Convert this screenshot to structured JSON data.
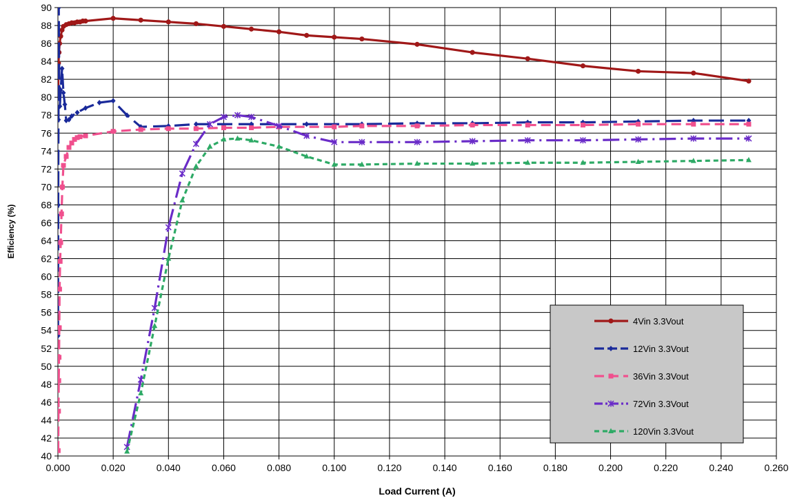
{
  "chart_data": {
    "type": "line",
    "title": "",
    "xlabel": "Load Current (A)",
    "ylabel": "Efficiency (%)",
    "xlim": [
      0,
      0.26
    ],
    "ylim": [
      40,
      90
    ],
    "x_ticks": [
      "0.000",
      "0.020",
      "0.040",
      "0.060",
      "0.080",
      "0.100",
      "0.120",
      "0.140",
      "0.160",
      "0.180",
      "0.200",
      "0.220",
      "0.240",
      "0.260"
    ],
    "y_ticks": [
      "40",
      "42",
      "44",
      "46",
      "48",
      "50",
      "52",
      "54",
      "56",
      "58",
      "60",
      "62",
      "64",
      "66",
      "68",
      "70",
      "72",
      "74",
      "76",
      "78",
      "80",
      "82",
      "84",
      "86",
      "88",
      "90"
    ],
    "grid": true,
    "legend_position": "lower-right",
    "series": [
      {
        "name": "4Vin 3.3Vout",
        "color": "#a01818",
        "dash": "solid",
        "marker": "circle",
        "points": [
          [
            0.0001,
            80.6
          ],
          [
            0.0002,
            83.8
          ],
          [
            0.0004,
            85.0
          ],
          [
            0.0006,
            86.0
          ],
          [
            0.001,
            86.8
          ],
          [
            0.0015,
            87.5
          ],
          [
            0.002,
            87.9
          ],
          [
            0.003,
            88.1
          ],
          [
            0.004,
            88.2
          ],
          [
            0.005,
            88.3
          ],
          [
            0.006,
            88.3
          ],
          [
            0.007,
            88.4
          ],
          [
            0.008,
            88.4
          ],
          [
            0.009,
            88.5
          ],
          [
            0.01,
            88.5
          ],
          [
            0.02,
            88.8
          ],
          [
            0.03,
            88.6
          ],
          [
            0.04,
            88.4
          ],
          [
            0.05,
            88.2
          ],
          [
            0.06,
            87.9
          ],
          [
            0.07,
            87.6
          ],
          [
            0.08,
            87.3
          ],
          [
            0.09,
            86.9
          ],
          [
            0.1,
            86.7
          ],
          [
            0.11,
            86.5
          ],
          [
            0.13,
            85.9
          ],
          [
            0.15,
            85.0
          ],
          [
            0.17,
            84.3
          ],
          [
            0.19,
            83.5
          ],
          [
            0.21,
            82.9
          ],
          [
            0.23,
            82.7
          ],
          [
            0.25,
            81.8
          ]
        ]
      },
      {
        "name": "12Vin 3.3Vout",
        "color": "#1a2a9a",
        "dash": "long",
        "marker": "diamond",
        "points": [
          [
            5e-05,
            53.4
          ],
          [
            0.0001,
            68.0
          ],
          [
            0.0002,
            77.5
          ],
          [
            0.0003,
            90.0
          ],
          [
            0.0005,
            81.0
          ],
          [
            0.0007,
            79.0
          ],
          [
            0.001,
            80.8
          ],
          [
            0.0015,
            83.2
          ],
          [
            0.002,
            80.5
          ],
          [
            0.0025,
            79.2
          ],
          [
            0.003,
            77.4
          ],
          [
            0.004,
            77.5
          ],
          [
            0.005,
            77.9
          ],
          [
            0.007,
            78.3
          ],
          [
            0.01,
            78.8
          ],
          [
            0.015,
            79.4
          ],
          [
            0.02,
            79.6
          ],
          [
            0.025,
            78.0
          ],
          [
            0.03,
            76.7
          ],
          [
            0.04,
            76.8
          ],
          [
            0.05,
            77.0
          ],
          [
            0.07,
            77.0
          ],
          [
            0.09,
            77.0
          ],
          [
            0.11,
            77.0
          ],
          [
            0.13,
            77.1
          ],
          [
            0.15,
            77.1
          ],
          [
            0.17,
            77.2
          ],
          [
            0.19,
            77.2
          ],
          [
            0.21,
            77.3
          ],
          [
            0.23,
            77.4
          ],
          [
            0.25,
            77.4
          ]
        ]
      },
      {
        "name": "36Vin 3.3Vout",
        "color": "#f0508e",
        "dash": "medium",
        "marker": "square",
        "points": [
          [
            0.0001,
            40.6
          ],
          [
            0.0002,
            45.0
          ],
          [
            0.0003,
            48.4
          ],
          [
            0.0004,
            51.0
          ],
          [
            0.0005,
            54.3
          ],
          [
            0.0006,
            58.6
          ],
          [
            0.0008,
            61.7
          ],
          [
            0.001,
            63.8
          ],
          [
            0.0013,
            67.0
          ],
          [
            0.0016,
            70.0
          ],
          [
            0.002,
            72.4
          ],
          [
            0.003,
            73.4
          ],
          [
            0.004,
            74.4
          ],
          [
            0.005,
            74.9
          ],
          [
            0.006,
            75.3
          ],
          [
            0.007,
            75.5
          ],
          [
            0.008,
            75.6
          ],
          [
            0.01,
            75.7
          ],
          [
            0.02,
            76.2
          ],
          [
            0.03,
            76.4
          ],
          [
            0.04,
            76.5
          ],
          [
            0.05,
            76.5
          ],
          [
            0.06,
            76.6
          ],
          [
            0.07,
            76.6
          ],
          [
            0.08,
            76.7
          ],
          [
            0.1,
            76.7
          ],
          [
            0.11,
            76.8
          ],
          [
            0.13,
            76.8
          ],
          [
            0.15,
            76.9
          ],
          [
            0.17,
            76.9
          ],
          [
            0.19,
            76.9
          ],
          [
            0.21,
            77.0
          ],
          [
            0.23,
            77.0
          ],
          [
            0.25,
            77.0
          ]
        ]
      },
      {
        "name": "72Vin 3.3Vout",
        "color": "#6a2cc8",
        "dash": "dashdot",
        "marker": "star",
        "points": [
          [
            0.025,
            41.0
          ],
          [
            0.03,
            48.5
          ],
          [
            0.035,
            56.5
          ],
          [
            0.04,
            65.5
          ],
          [
            0.045,
            71.5
          ],
          [
            0.05,
            74.8
          ],
          [
            0.055,
            77.0
          ],
          [
            0.06,
            77.8
          ],
          [
            0.065,
            78.0
          ],
          [
            0.07,
            77.8
          ],
          [
            0.08,
            76.8
          ],
          [
            0.09,
            75.7
          ],
          [
            0.1,
            75.0
          ],
          [
            0.11,
            75.0
          ],
          [
            0.13,
            75.0
          ],
          [
            0.15,
            75.1
          ],
          [
            0.17,
            75.2
          ],
          [
            0.19,
            75.2
          ],
          [
            0.21,
            75.3
          ],
          [
            0.23,
            75.4
          ],
          [
            0.25,
            75.4
          ]
        ]
      },
      {
        "name": "120Vin 3.3Vout",
        "color": "#2eaa66",
        "dash": "short",
        "marker": "triangle",
        "points": [
          [
            0.025,
            40.5
          ],
          [
            0.03,
            47.0
          ],
          [
            0.035,
            54.5
          ],
          [
            0.04,
            62.0
          ],
          [
            0.045,
            68.5
          ],
          [
            0.05,
            72.3
          ],
          [
            0.055,
            74.5
          ],
          [
            0.06,
            75.3
          ],
          [
            0.065,
            75.4
          ],
          [
            0.07,
            75.2
          ],
          [
            0.08,
            74.5
          ],
          [
            0.09,
            73.4
          ],
          [
            0.1,
            72.5
          ],
          [
            0.11,
            72.5
          ],
          [
            0.13,
            72.6
          ],
          [
            0.15,
            72.6
          ],
          [
            0.17,
            72.7
          ],
          [
            0.19,
            72.7
          ],
          [
            0.21,
            72.8
          ],
          [
            0.23,
            72.9
          ],
          [
            0.25,
            73.0
          ]
        ]
      }
    ]
  }
}
